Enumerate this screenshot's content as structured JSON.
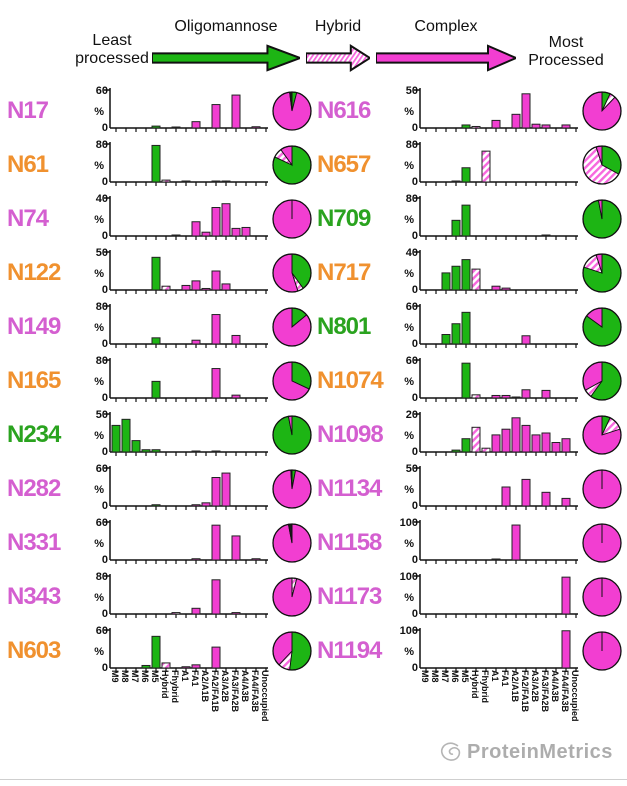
{
  "header": {
    "least_line1": "Least",
    "least_line2": "processed",
    "most_line1": "Most",
    "most_line2": "Processed",
    "arrows": [
      {
        "label": "Oligomannose",
        "type": "oligomannose"
      },
      {
        "label": "Hybrid",
        "type": "hybrid"
      },
      {
        "label": "Complex",
        "type": "complex"
      }
    ]
  },
  "colors": {
    "oligomannose": "#1db514",
    "complex": "#f23ed1",
    "hybrid_stripe": "#f768de",
    "unoccupied": "#1a1a1a",
    "label_pink": "#d45fd0",
    "label_orange": "#f0912f",
    "label_green": "#2aa31f"
  },
  "watermark": {
    "text": "ProteinMetrics"
  },
  "chart_data": {
    "type": "bar",
    "title": "Site-specific N-glycan processing: % abundance per glycan class with summary pies",
    "y_axis": {
      "unit": "%",
      "base": "0"
    },
    "categories": [
      "M9",
      "M8",
      "M7",
      "M6",
      "M5",
      "Hybrid",
      "Fhybrid",
      "A1",
      "FA1",
      "A2/A1B",
      "FA2/FA1B",
      "A3/A2B",
      "FA3/FA2B",
      "A4/A3B",
      "FA4/FA3B",
      "Unoccupied"
    ],
    "category_types": [
      "oligomannose",
      "oligomannose",
      "oligomannose",
      "oligomannose",
      "oligomannose",
      "hybrid",
      "hybrid",
      "complex",
      "complex",
      "complex",
      "complex",
      "complex",
      "complex",
      "complex",
      "complex",
      "unoccupied"
    ],
    "columns": {
      "left": [
        {
          "id": "N17",
          "label_color": "pink",
          "ymax": 60,
          "bars": {
            "M5": 3,
            "Fhybrid": 1,
            "FA1": 10,
            "FA2/FA1B": 37,
            "FA3/FA2B": 52,
            "FA4/FA3B": 2
          },
          "pie": {
            "oligomannose": 4,
            "complex": 94,
            "unoccupied": 2
          }
        },
        {
          "id": "N61",
          "label_color": "orange",
          "ymax": 80,
          "bars": {
            "M5": 77,
            "Hybrid": 4,
            "A1": 2,
            "FA2/FA1B": 2,
            "A3/A2B": 1
          },
          "pie": {
            "oligomannose": 82,
            "hybrid": 8,
            "complex": 10
          }
        },
        {
          "id": "N74",
          "label_color": "pink",
          "ymax": 40,
          "bars": {
            "Fhybrid": 1,
            "FA1": 15,
            "A2/A1B": 4,
            "FA2/FA1B": 30,
            "A3/A2B": 34,
            "FA3/FA2B": 8,
            "A4/A3B": 9
          },
          "pie": {
            "complex": 100
          }
        },
        {
          "id": "N122",
          "label_color": "orange",
          "ymax": 50,
          "bars": {
            "M5": 43,
            "Hybrid": 5,
            "A1": 6,
            "FA1": 12,
            "A2/A1B": 2,
            "FA2/FA1B": 25,
            "A3/A2B": 8
          },
          "pie": {
            "oligomannose": 40,
            "hybrid": 5,
            "complex": 55
          }
        },
        {
          "id": "N149",
          "label_color": "pink",
          "ymax": 80,
          "bars": {
            "M5": 13,
            "FA1": 8,
            "FA2/FA1B": 62,
            "FA3/FA2B": 18
          },
          "pie": {
            "oligomannose": 14,
            "complex": 86
          }
        },
        {
          "id": "N165",
          "label_color": "orange",
          "ymax": 80,
          "bars": {
            "M5": 35,
            "FA2/FA1B": 62,
            "FA3/FA2B": 6
          },
          "pie": {
            "oligomannose": 32,
            "complex": 68
          }
        },
        {
          "id": "N234",
          "label_color": "green",
          "ymax": 50,
          "bars": {
            "M9": 35,
            "M8": 43,
            "M7": 15,
            "M6": 3,
            "M5": 3,
            "FA1": 1,
            "FA2/FA1B": 1
          },
          "pie": {
            "oligomannose": 97,
            "complex": 3
          }
        },
        {
          "id": "N282",
          "label_color": "pink",
          "ymax": 60,
          "bars": {
            "M5": 2,
            "FA1": 2,
            "A2/A1B": 5,
            "FA2/FA1B": 45,
            "A3/A2B": 52
          },
          "pie": {
            "oligomannose": 3,
            "complex": 96,
            "unoccupied": 1
          }
        },
        {
          "id": "N331",
          "label_color": "pink",
          "ymax": 60,
          "bars": {
            "FA1": 2,
            "FA2/FA1B": 55,
            "FA3/FA2B": 38,
            "FA4/FA3B": 2
          },
          "pie": {
            "complex": 97,
            "unoccupied": 3
          }
        },
        {
          "id": "N343",
          "label_color": "pink",
          "ymax": 80,
          "bars": {
            "Fhybrid": 3,
            "FA1": 12,
            "FA2/FA1B": 72,
            "FA3/FA2B": 3
          },
          "pie": {
            "hybrid": 4,
            "complex": 96
          }
        },
        {
          "id": "N603",
          "label_color": "orange",
          "ymax": 60,
          "bars": {
            "M6": 4,
            "M5": 50,
            "Hybrid": 8,
            "A1": 2,
            "FA1": 5,
            "FA2/FA1B": 33
          },
          "pie": {
            "oligomannose": 52,
            "hybrid": 10,
            "complex": 38
          }
        }
      ],
      "right": [
        {
          "id": "N616",
          "label_color": "pink",
          "ymax": 50,
          "bars": {
            "M5": 4,
            "Hybrid": 2,
            "A1": 10,
            "A2/A1B": 18,
            "FA2/FA1B": 45,
            "A3/A2B": 5,
            "FA3/FA2B": 4,
            "FA4/FA3B": 4
          },
          "pie": {
            "oligomannose": 7,
            "hybrid": 5,
            "complex": 88
          }
        },
        {
          "id": "N657",
          "label_color": "orange",
          "ymax": 80,
          "bars": {
            "M6": 2,
            "M5": 30,
            "Fhybrid": 65
          },
          "pie": {
            "oligomannose": 33,
            "hybrid": 62,
            "complex": 5
          }
        },
        {
          "id": "N709",
          "label_color": "green",
          "ymax": 80,
          "bars": {
            "M6": 33,
            "M5": 65,
            "FA3/FA2B": 1
          },
          "pie": {
            "oligomannose": 97,
            "complex": 3
          }
        },
        {
          "id": "N717",
          "label_color": "orange",
          "ymax": 40,
          "bars": {
            "M7": 18,
            "M6": 25,
            "M5": 32,
            "Hybrid": 22,
            "A1": 4,
            "FA1": 2
          },
          "pie": {
            "oligomannose": 80,
            "hybrid": 15,
            "complex": 5
          }
        },
        {
          "id": "N801",
          "label_color": "green",
          "ymax": 60,
          "bars": {
            "M7": 15,
            "M6": 32,
            "M5": 50,
            "FA2/FA1B": 13
          },
          "pie": {
            "oligomannose": 85,
            "complex": 15
          }
        },
        {
          "id": "N1074",
          "label_color": "orange",
          "ymax": 60,
          "bars": {
            "M5": 55,
            "Hybrid": 5,
            "A1": 4,
            "FA1": 4,
            "A2/A1B": 1,
            "FA2/FA1B": 13,
            "FA3/FA2B": 12
          },
          "pie": {
            "oligomannose": 60,
            "hybrid": 7,
            "complex": 33
          }
        },
        {
          "id": "N1098",
          "label_color": "pink",
          "ymax": 20,
          "bars": {
            "M6": 1,
            "M5": 7,
            "Hybrid": 13,
            "Fhybrid": 2,
            "A1": 9,
            "FA1": 12,
            "A2/A1B": 18,
            "FA2/FA1B": 14,
            "A3/A2B": 9,
            "FA3/FA2B": 10,
            "A4/A3B": 5,
            "FA4/FA3B": 7
          },
          "pie": {
            "oligomannose": 7,
            "hybrid": 13,
            "complex": 80
          }
        },
        {
          "id": "N1134",
          "label_color": "pink",
          "ymax": 50,
          "bars": {
            "FA1": 25,
            "FA2/FA1B": 35,
            "FA3/FA2B": 18,
            "FA4/FA3B": 10
          },
          "pie": {
            "complex": 100
          }
        },
        {
          "id": "N1158",
          "label_color": "pink",
          "ymax": 100,
          "bars": {
            "A1": 2,
            "A2/A1B": 92
          },
          "pie": {
            "complex": 100
          }
        },
        {
          "id": "N1173",
          "label_color": "pink",
          "ymax": 100,
          "bars": {
            "FA4/FA3B": 97
          },
          "pie": {
            "complex": 100
          }
        },
        {
          "id": "N1194",
          "label_color": "pink",
          "ymax": 100,
          "bars": {
            "FA4/FA3B": 98
          },
          "pie": {
            "complex": 100
          }
        }
      ]
    }
  }
}
